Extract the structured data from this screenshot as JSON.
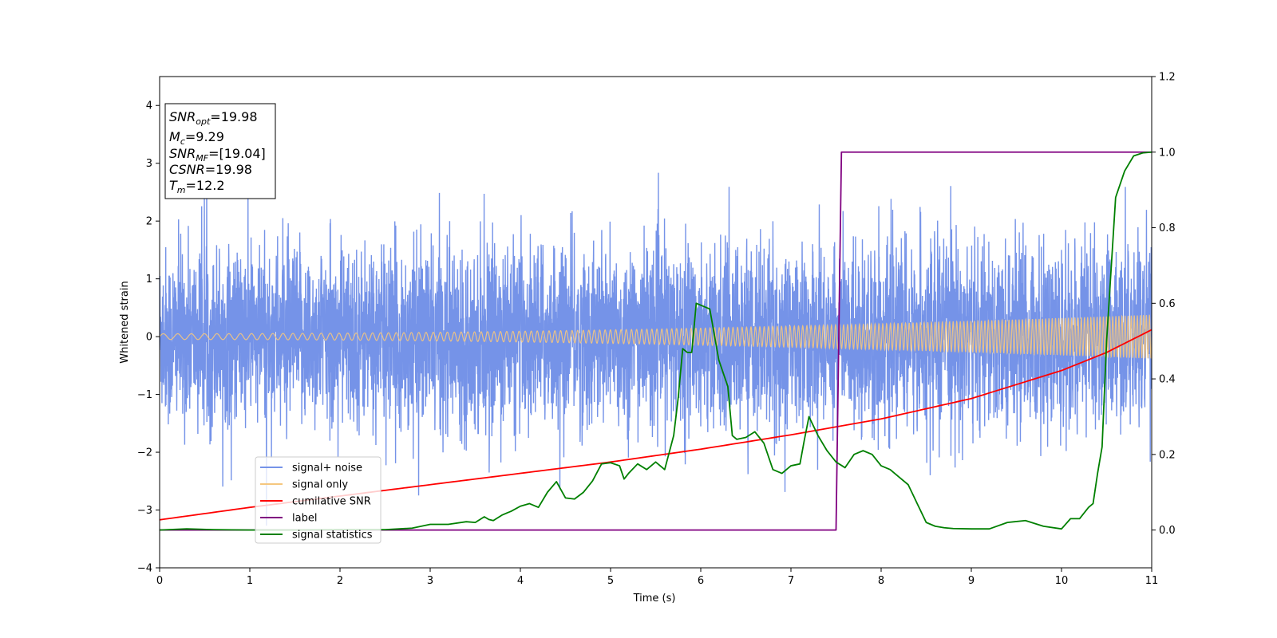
{
  "chart_data": {
    "type": "line",
    "xlabel": "Time (s)",
    "ylabel": "Whitened strain",
    "xlim": [
      0,
      11
    ],
    "ylim_left": [
      -4,
      4.5
    ],
    "ylim_right": [
      -0.1,
      1.2
    ],
    "x_ticks": [
      0,
      1,
      2,
      3,
      4,
      5,
      6,
      7,
      8,
      9,
      10,
      11
    ],
    "x_tick_labels": [
      "0",
      "1",
      "2",
      "3",
      "4",
      "5",
      "6",
      "7",
      "8",
      "9",
      "10",
      "11"
    ],
    "y_left_ticks": [
      -4,
      -3,
      -2,
      -1,
      0,
      1,
      2,
      3,
      4
    ],
    "y_left_tick_labels": [
      "−4",
      "−3",
      "−2",
      "−1",
      "0",
      "1",
      "2",
      "3",
      "4"
    ],
    "y_right_ticks": [
      0.0,
      0.2,
      0.4,
      0.6,
      0.8,
      1.0,
      1.2
    ],
    "y_right_tick_labels": [
      "0.0",
      "0.2",
      "0.4",
      "0.6",
      "0.8",
      "1.0",
      "1.2"
    ],
    "grid": false,
    "legend_position": "lower-left",
    "info_box": [
      {
        "base": "SNR",
        "sub": "opt",
        "value": "=19.98"
      },
      {
        "base": "M",
        "sub": "c",
        "value": "=9.29"
      },
      {
        "base": "SNR",
        "sub": "MF",
        "value": "=[19.04]"
      },
      {
        "base": "CSNR",
        "sub": "",
        "value": "=19.98"
      },
      {
        "base": "T",
        "sub": "m",
        "value": "=12.2"
      }
    ],
    "series": [
      {
        "name": "signal+ noise",
        "color": "#7593e8",
        "axis": "left",
        "style": "dense noisy oscillation",
        "noise_std": 0.75,
        "max_abs": 3.2
      },
      {
        "name": "signal only",
        "color": "#f5c77e",
        "axis": "left",
        "style": "chirp",
        "amplitude_start": 0.05,
        "amplitude_end": 0.38,
        "freq_start_hz": 6,
        "freq_end_hz": 30
      },
      {
        "name": "cumilative SNR",
        "color": "#ff0000",
        "axis": "right",
        "x": [
          0,
          1,
          2,
          3,
          4,
          5,
          6,
          7,
          8,
          9,
          10,
          10.5,
          11
        ],
        "y": [
          0.027,
          0.06,
          0.09,
          0.12,
          0.15,
          0.18,
          0.214,
          0.252,
          0.294,
          0.348,
          0.422,
          0.47,
          0.53
        ]
      },
      {
        "name": "label",
        "color": "#800080",
        "axis": "right",
        "x": [
          0,
          7.5,
          7.56,
          11
        ],
        "y": [
          0.0,
          0.0,
          1.0,
          1.0
        ]
      },
      {
        "name": "signal statistics",
        "color": "#008000",
        "axis": "right",
        "x": [
          0,
          0.3,
          0.6,
          1.0,
          1.5,
          2.0,
          2.5,
          2.8,
          3.0,
          3.2,
          3.4,
          3.5,
          3.6,
          3.65,
          3.7,
          3.8,
          3.9,
          4.0,
          4.1,
          4.2,
          4.3,
          4.4,
          4.5,
          4.6,
          4.7,
          4.8,
          4.9,
          5.0,
          5.1,
          5.15,
          5.2,
          5.3,
          5.4,
          5.5,
          5.6,
          5.7,
          5.75,
          5.8,
          5.85,
          5.9,
          5.95,
          6.0,
          6.1,
          6.2,
          6.3,
          6.35,
          6.4,
          6.5,
          6.6,
          6.7,
          6.8,
          6.9,
          7.0,
          7.1,
          7.15,
          7.2,
          7.3,
          7.4,
          7.5,
          7.6,
          7.7,
          7.8,
          7.9,
          8.0,
          8.1,
          8.2,
          8.3,
          8.4,
          8.5,
          8.6,
          8.7,
          8.8,
          9.0,
          9.2,
          9.4,
          9.6,
          9.8,
          10.0,
          10.1,
          10.2,
          10.3,
          10.35,
          10.4,
          10.45,
          10.5,
          10.6,
          10.7,
          10.8,
          10.9,
          11.0
        ],
        "y": [
          0.0,
          0.003,
          0.001,
          0.0,
          0.0,
          0.001,
          0.001,
          0.005,
          0.015,
          0.015,
          0.022,
          0.02,
          0.035,
          0.028,
          0.025,
          0.04,
          0.05,
          0.063,
          0.07,
          0.06,
          0.1,
          0.128,
          0.085,
          0.082,
          0.1,
          0.13,
          0.175,
          0.178,
          0.17,
          0.135,
          0.15,
          0.175,
          0.16,
          0.18,
          0.16,
          0.25,
          0.35,
          0.48,
          0.47,
          0.47,
          0.6,
          0.595,
          0.585,
          0.45,
          0.38,
          0.25,
          0.24,
          0.245,
          0.26,
          0.23,
          0.16,
          0.15,
          0.17,
          0.175,
          0.24,
          0.3,
          0.25,
          0.21,
          0.18,
          0.165,
          0.2,
          0.21,
          0.2,
          0.17,
          0.16,
          0.14,
          0.12,
          0.07,
          0.02,
          0.01,
          0.006,
          0.004,
          0.003,
          0.003,
          0.02,
          0.025,
          0.01,
          0.003,
          0.03,
          0.03,
          0.06,
          0.07,
          0.15,
          0.22,
          0.5,
          0.88,
          0.95,
          0.99,
          0.998,
          1.0
        ]
      }
    ]
  }
}
